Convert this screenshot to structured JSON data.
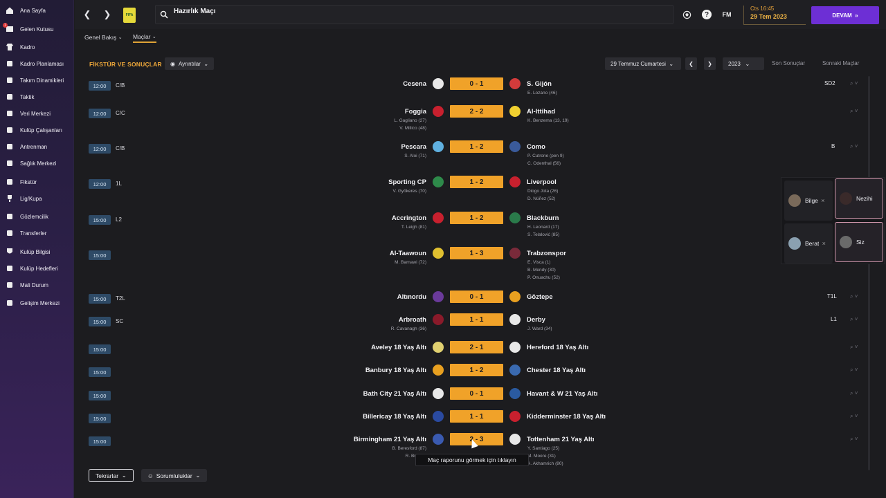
{
  "sidebar": {
    "items": [
      {
        "label": "Ana Sayfa",
        "icon": "home-icon"
      },
      {
        "label": "Gelen Kutusu",
        "icon": "inbox-icon",
        "badge": "1"
      },
      {
        "label": "Kadro",
        "icon": "shirt-icon"
      },
      {
        "label": "Kadro Planlaması",
        "icon": "squad-plan-icon"
      },
      {
        "label": "Takım Dinamikleri",
        "icon": "dynamics-icon"
      },
      {
        "label": "Taktik",
        "icon": "tactics-icon"
      },
      {
        "label": "Veri Merkezi",
        "icon": "data-icon"
      },
      {
        "label": "Kulüp Çalışanları",
        "icon": "staff-icon"
      },
      {
        "label": "Antrenman",
        "icon": "training-icon"
      },
      {
        "label": "Sağlık Merkezi",
        "icon": "medical-icon"
      },
      {
        "label": "Fikstür",
        "icon": "calendar-icon"
      },
      {
        "label": "Lig/Kupa",
        "icon": "trophy-icon"
      },
      {
        "label": "Gözlemcilik",
        "icon": "scouting-icon"
      },
      {
        "label": "Transferler",
        "icon": "transfer-icon"
      },
      {
        "label": "Kulüp Bilgisi",
        "icon": "shield-icon"
      },
      {
        "label": "Kulüp Hedefleri",
        "icon": "vision-icon"
      },
      {
        "label": "Mali Durum",
        "icon": "finance-icon"
      },
      {
        "label": "Gelişim Merkezi",
        "icon": "development-icon"
      }
    ]
  },
  "topbar": {
    "search_text": "Hazırlık Maçı",
    "time": "Cts 16:45",
    "date": "29 Tem 2023",
    "continue_label": "DEVAM",
    "fm_label": "FM",
    "help_label": "?",
    "club_logo_text": "FIFA"
  },
  "subnav": {
    "overview": "Genel Bakış",
    "matches": "Maçlar"
  },
  "header": {
    "title": "FİKSTÜR VE SONUÇLAR",
    "details": "Ayrıntılar",
    "date_select": "29 Temmuz Cumartesi",
    "year_select": "2023",
    "last_results": "Son Sonuçlar",
    "next_matches": "Sonraki Maçlar"
  },
  "fixtures": [
    {
      "time": "12:00",
      "comp": "C/B",
      "home": "Cesena",
      "score": "0 - 1",
      "away": "S. Gijón",
      "home_scorers": [],
      "away_scorers": [
        "E. Lozano (46)"
      ],
      "code": "SD2",
      "home_crest": "#e8e8e8",
      "away_crest": "#d33b3b"
    },
    {
      "time": "12:00",
      "comp": "C/C",
      "home": "Foggia",
      "score": "2 - 2",
      "away": "Al-Ittihad",
      "home_scorers": [
        "L. Gagliano (27)",
        "V. Millico (48)"
      ],
      "away_scorers": [
        "K. Benzema (13, 19)"
      ],
      "code": "",
      "home_crest": "#c8202e",
      "away_crest": "#f0d030"
    },
    {
      "time": "12:00",
      "comp": "C/B",
      "home": "Pescara",
      "score": "1 - 2",
      "away": "Como",
      "home_scorers": [
        "S. Aloi (71)"
      ],
      "away_scorers": [
        "P. Cutrone (pen 9)",
        "C. Odenthal (56)"
      ],
      "code": "B",
      "home_crest": "#5fb0e0",
      "away_crest": "#3a5a9a"
    },
    {
      "time": "12:00",
      "comp": "1L",
      "home": "Sporting CP",
      "score": "1 - 2",
      "away": "Liverpool",
      "home_scorers": [
        "V. Gyökeres (70)"
      ],
      "away_scorers": [
        "Diogo Jota (26)",
        "D. Núñez (52)"
      ],
      "code": "",
      "home_crest": "#2e8a4a",
      "away_crest": "#c8202e"
    },
    {
      "time": "15:00",
      "comp": "L2",
      "home": "Accrington",
      "score": "1 - 2",
      "away": "Blackburn",
      "home_scorers": [
        "T. Leigh (81)"
      ],
      "away_scorers": [
        "H. Leonard (17)",
        "S. Telalović (85)"
      ],
      "code": "",
      "home_crest": "#c8202e",
      "away_crest": "#2a7a4a"
    },
    {
      "time": "15:00",
      "comp": "",
      "home": "Al-Taawoun",
      "score": "1 - 3",
      "away": "Trabzonspor",
      "home_scorers": [
        "M. Barnawi (72)"
      ],
      "away_scorers": [
        "E. Visca (1)",
        "B. Mendy (30)",
        "P. Onuachu (52)"
      ],
      "code": "",
      "home_crest": "#e0c030",
      "away_crest": "#7a2a3a"
    },
    {
      "time": "15:00",
      "comp": "T2L",
      "home": "Altınordu",
      "score": "0 - 1",
      "away": "Göztepe",
      "home_scorers": [],
      "away_scorers": [],
      "code": "T1L",
      "home_crest": "#6a3a9a",
      "away_crest": "#e8a020"
    },
    {
      "time": "15:00",
      "comp": "SC",
      "home": "Arbroath",
      "score": "1 - 1",
      "away": "Derby",
      "home_scorers": [
        "R. Cavanagh (36)"
      ],
      "away_scorers": [
        "J. Ward (34)"
      ],
      "code": "L1",
      "home_crest": "#8a1a2a",
      "away_crest": "#e8e8e8"
    },
    {
      "time": "15:00",
      "comp": "",
      "home": "Aveley 18 Yaş Altı",
      "score": "2 - 1",
      "away": "Hereford 18 Yaş Altı",
      "home_scorers": [],
      "away_scorers": [],
      "code": "",
      "home_crest": "#e0d070",
      "away_crest": "#e8e8e8"
    },
    {
      "time": "15:00",
      "comp": "",
      "home": "Banbury 18 Yaş Altı",
      "score": "1 - 2",
      "away": "Chester 18 Yaş Altı",
      "home_scorers": [],
      "away_scorers": [],
      "code": "",
      "home_crest": "#e8a020",
      "away_crest": "#3a6ab0"
    },
    {
      "time": "15:00",
      "comp": "",
      "home": "Bath City 21 Yaş Altı",
      "score": "0 - 1",
      "away": "Havant & W 21 Yaş Altı",
      "home_scorers": [],
      "away_scorers": [],
      "code": "",
      "home_crest": "#e8e8e8",
      "away_crest": "#2a5aa0"
    },
    {
      "time": "15:00",
      "comp": "",
      "home": "Billericay 18 Yaş Altı",
      "score": "1 - 1",
      "away": "Kidderminster 18 Yaş Altı",
      "home_scorers": [],
      "away_scorers": [],
      "code": "",
      "home_crest": "#2a4aa0",
      "away_crest": "#c8202e"
    },
    {
      "time": "15:00",
      "comp": "",
      "home": "Birmingham 21 Yaş Altı",
      "score": "2 - 3",
      "away": "Tottenham 21 Yaş Altı",
      "home_scorers": [
        "B. Beresford (87)",
        "R. Browne"
      ],
      "away_scorers": [
        "Y. Santiago (25)",
        "M. Moore (31)",
        "A. Akhamrich (80)"
      ],
      "code": "",
      "home_crest": "#3a5ab0",
      "away_crest": "#e8e8e8"
    }
  ],
  "video_call": {
    "participants": [
      {
        "name": "Bilge",
        "muted": true,
        "avatar_color": "#7a6a5a"
      },
      {
        "name": "Nezihi",
        "muted": true,
        "speaking": true,
        "avatar_color": "#3a2a2a"
      },
      {
        "name": "Berat",
        "muted": true,
        "avatar_color": "#8aa0b0"
      },
      {
        "name": "Siz",
        "muted": false,
        "speaking": true,
        "avatar_color": "#6a6a6a"
      }
    ]
  },
  "tooltip": "Maç raporunu görmek için tıklayın",
  "bottom": {
    "repeats": "Tekrarlar",
    "responsibilities": "Sorumluluklar"
  },
  "colors": {
    "accent": "#f0a229",
    "continue": "#6d2fd5",
    "time_badge": "#2e4a66"
  }
}
